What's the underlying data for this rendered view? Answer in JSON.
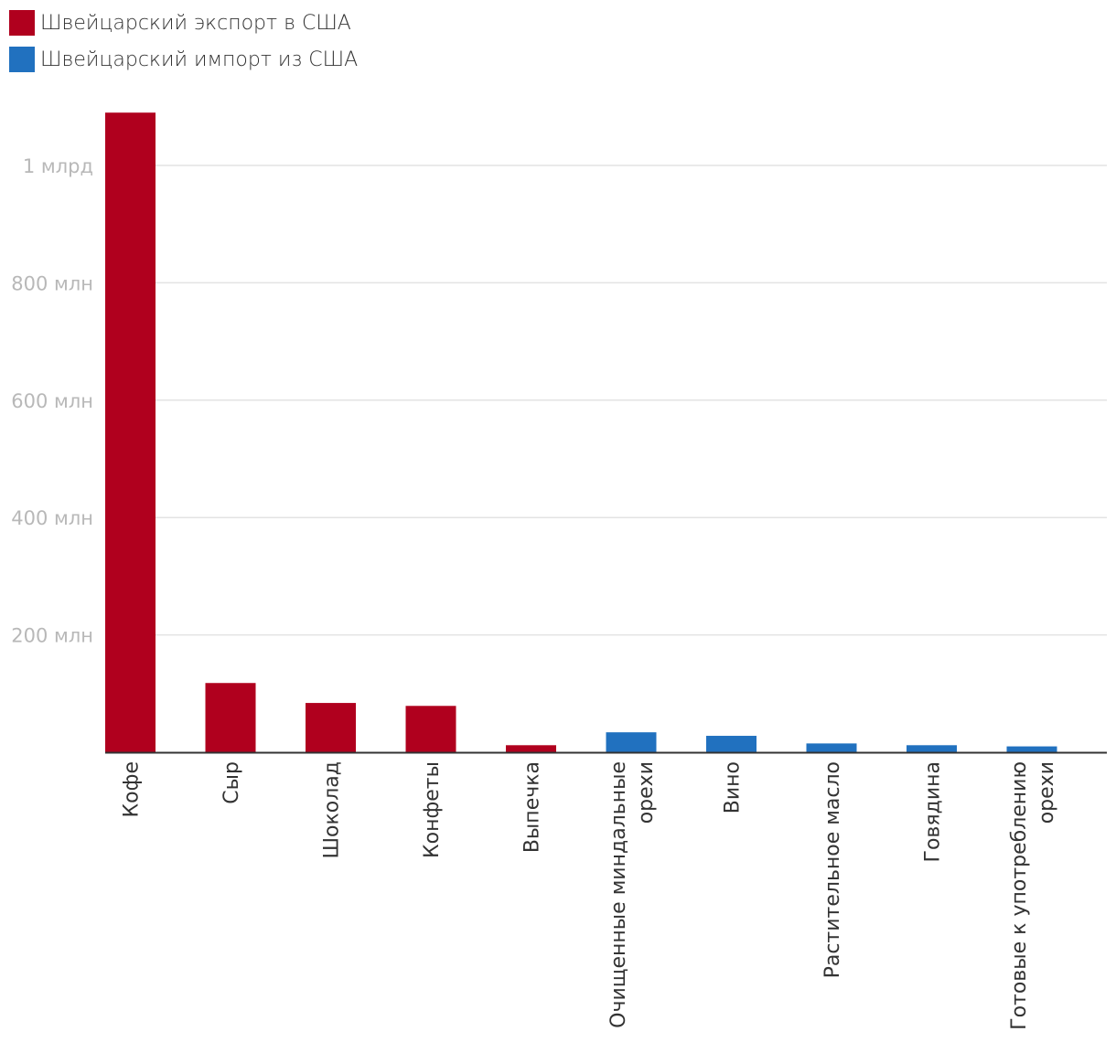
{
  "legend": {
    "export_label": "Швейцарский экспорт в США",
    "import_label": "Швейцарский импорт из США",
    "export_icon": "square-swatch-icon",
    "import_icon": "square-swatch-icon"
  },
  "chart_data": {
    "type": "bar",
    "title": "",
    "xlabel": "",
    "ylabel": "",
    "ylim": [
      0,
      1100000000
    ],
    "grid": true,
    "legend_position": "top-left",
    "y_ticks": [
      {
        "value": 200000000,
        "label": "200 млн"
      },
      {
        "value": 400000000,
        "label": "400 млн"
      },
      {
        "value": 600000000,
        "label": "600 млн"
      },
      {
        "value": 800000000,
        "label": "800 млн"
      },
      {
        "value": 1000000000,
        "label": "1 млрд"
      }
    ],
    "categories": [
      {
        "lines": [
          "Кофе"
        ]
      },
      {
        "lines": [
          "Сыр"
        ]
      },
      {
        "lines": [
          "Шоколад"
        ]
      },
      {
        "lines": [
          "Конфеты"
        ]
      },
      {
        "lines": [
          "Выпечка"
        ]
      },
      {
        "lines": [
          "Очищенные миндальные",
          "орехи"
        ]
      },
      {
        "lines": [
          "Вино"
        ]
      },
      {
        "lines": [
          "Растительное масло"
        ]
      },
      {
        "lines": [
          "Говядина"
        ]
      },
      {
        "lines": [
          "Готовые к употреблению",
          "орехи"
        ]
      }
    ],
    "series": [
      {
        "name": "Швейцарский экспорт в США",
        "color": "#b0001e",
        "values": [
          1090000000,
          118000000,
          84000000,
          79000000,
          12000000,
          0,
          0,
          0,
          0,
          0
        ]
      },
      {
        "name": "Швейцарский импорт из США",
        "color": "#2171bf",
        "values": [
          0,
          0,
          0,
          0,
          0,
          34000000,
          28000000,
          15000000,
          12000000,
          10000000
        ]
      }
    ]
  }
}
